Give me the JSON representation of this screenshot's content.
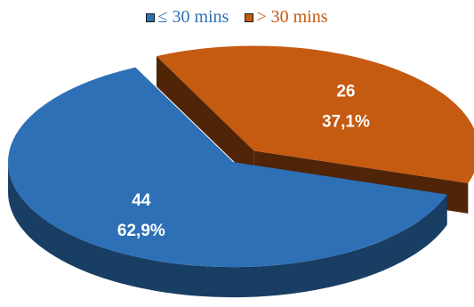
{
  "chart_data": {
    "type": "pie",
    "title": "",
    "legend_position": "top",
    "categories": [
      "≤ 30 mins",
      "> 30 mins"
    ],
    "values": [
      44,
      26
    ],
    "percent_labels": [
      "62,9%",
      "37,1%"
    ],
    "colors": [
      "#2e70b6",
      "#c55a11"
    ],
    "legend": {
      "items": [
        {
          "label": "≤ 30 mins",
          "color": "#2e70b6"
        },
        {
          "label": "> 30 mins",
          "color": "#c55a11"
        }
      ]
    }
  }
}
